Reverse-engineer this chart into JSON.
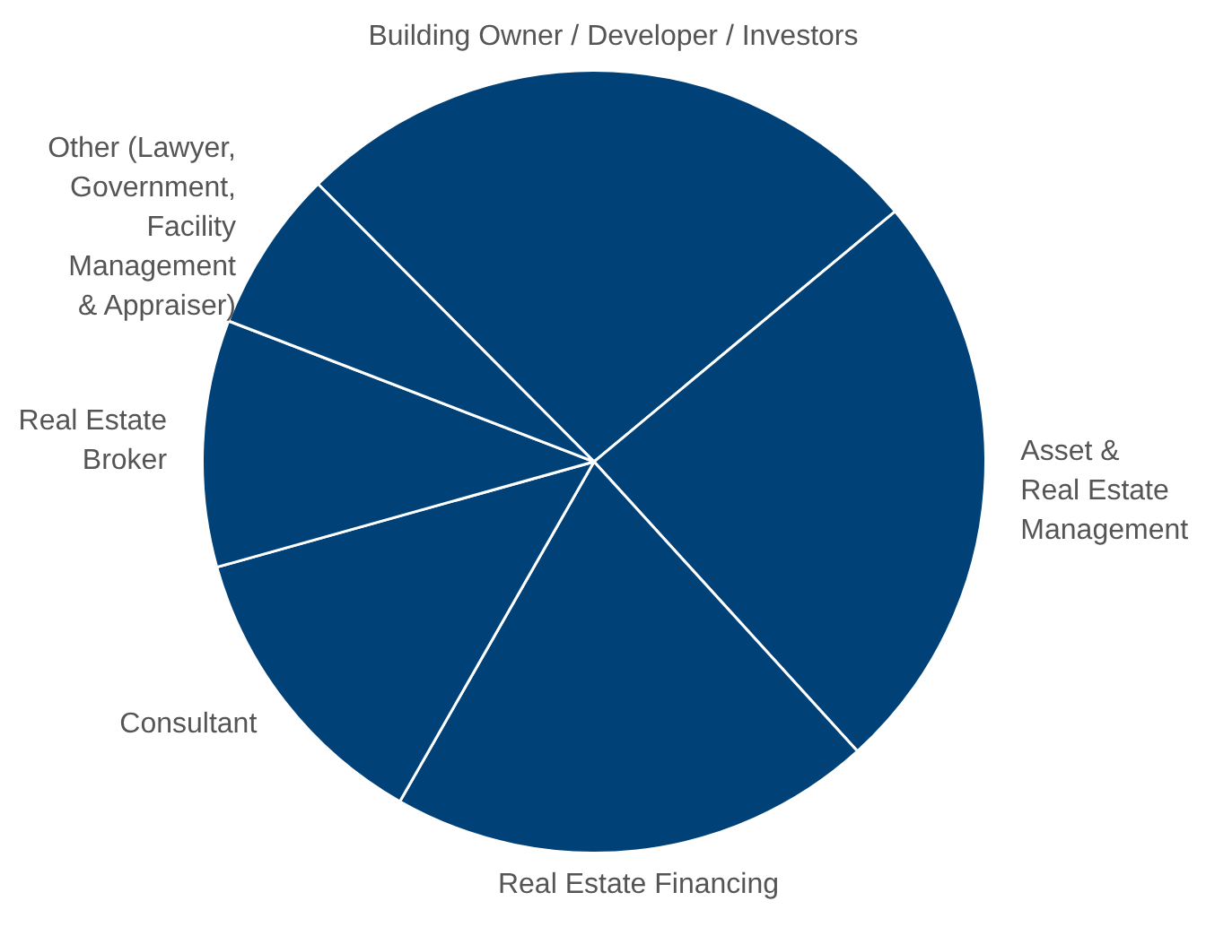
{
  "chart_data": {
    "type": "pie",
    "categories": [
      "Building Owner / Developer / Investors",
      "Asset &\nReal Estate\nManagement",
      "Real Estate Financing",
      "Consultant",
      "Real Estate\nBroker",
      "Other (Lawyer,\nGovernment,\nFacility\nManagement\n& Appraiser)"
    ],
    "values": [
      26.4,
      24.3,
      20.0,
      12.4,
      10.2,
      6.7
    ],
    "colors": [
      "#004178",
      "#004178",
      "#004178",
      "#004178",
      "#004178",
      "#004178"
    ],
    "legend": false
  }
}
